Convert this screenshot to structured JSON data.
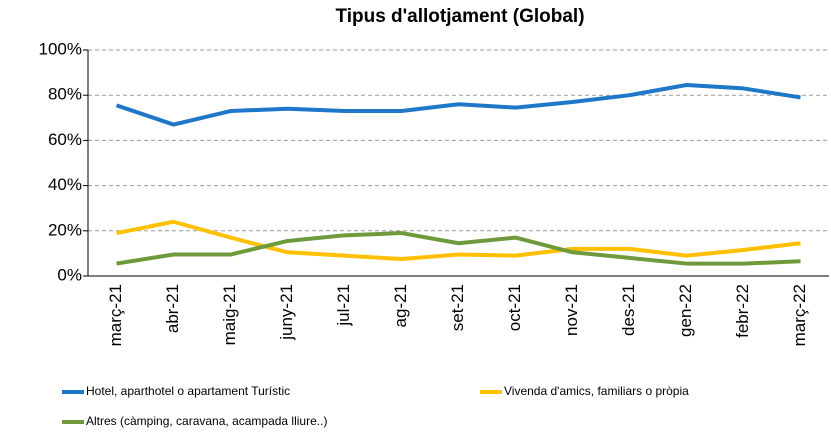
{
  "chart_data": {
    "type": "line",
    "title": "Tipus d'allotjament (Global)",
    "categories": [
      "març-21",
      "abr-21",
      "maig-21",
      "juny-21",
      "jul-21",
      "ag-21",
      "set-21",
      "oct-21",
      "nov-21",
      "des-21",
      "gen-22",
      "febr-22",
      "març-22"
    ],
    "series": [
      {
        "name": "Hotel, aparthotel o apartament Turístic",
        "color": "#1f77c8",
        "values": [
          75.5,
          67,
          73,
          74,
          73,
          73,
          76,
          74.5,
          77,
          80,
          84.5,
          83,
          79
        ]
      },
      {
        "name": "Vivenda d'amics, familiars o pròpia",
        "color": "#ffc000",
        "values": [
          19,
          24,
          17,
          10.5,
          9,
          7.5,
          9.5,
          9,
          12,
          12,
          9,
          11.5,
          14.5
        ]
      },
      {
        "name": "Altres (càmping, caravana, acampada lliure..)",
        "color": "#6e9a3c",
        "values": [
          5.5,
          9.5,
          9.5,
          15.5,
          18,
          19,
          14.5,
          17,
          10.5,
          8,
          5.5,
          5.5,
          6.5
        ]
      }
    ],
    "ylim": [
      0,
      100
    ],
    "yticks": [
      {
        "value": 0,
        "label": "0%"
      },
      {
        "value": 20,
        "label": "20%"
      },
      {
        "value": 40,
        "label": "40%"
      },
      {
        "value": 60,
        "label": "60%"
      },
      {
        "value": 80,
        "label": "80%"
      },
      {
        "value": 100,
        "label": "100%"
      }
    ],
    "grid": true
  }
}
